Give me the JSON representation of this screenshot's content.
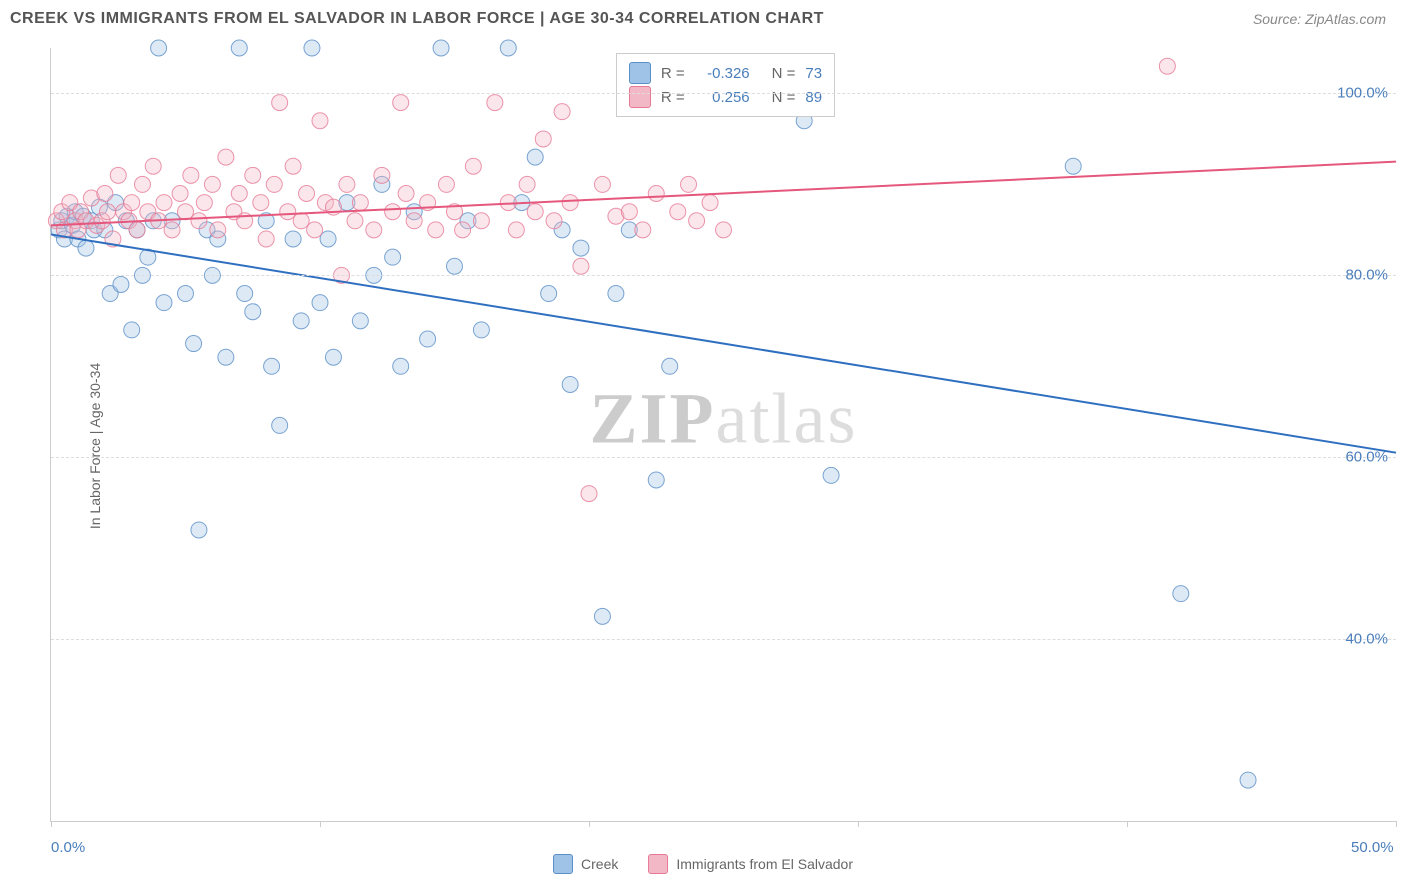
{
  "header": {
    "title": "CREEK VS IMMIGRANTS FROM EL SALVADOR IN LABOR FORCE | AGE 30-34 CORRELATION CHART",
    "source": "Source: ZipAtlas.com"
  },
  "chart": {
    "type": "scatter",
    "y_label": "In Labor Force | Age 30-34",
    "watermark": "ZIPatlas",
    "background_color": "#ffffff",
    "grid_color": "#dddddd",
    "axis_color": "#cccccc",
    "tick_label_color": "#4a7ebb",
    "xlim": [
      0,
      50
    ],
    "ylim": [
      20,
      105
    ],
    "x_ticks": [
      0,
      10,
      20,
      30,
      40,
      50
    ],
    "x_tick_labels": {
      "0": "0.0%",
      "50": "50.0%"
    },
    "y_ticks": [
      40,
      60,
      80,
      100
    ],
    "y_tick_labels": {
      "40": "40.0%",
      "60": "60.0%",
      "80": "80.0%",
      "100": "100.0%"
    },
    "marker_radius": 8,
    "marker_opacity": 0.35,
    "marker_stroke_opacity": 0.8,
    "line_width": 2,
    "series": [
      {
        "name": "Creek",
        "color_fill": "#9ec3e6",
        "color_stroke": "#5b8fc7",
        "line_color": "#2f6fc0",
        "R": "-0.326",
        "N": "73",
        "trend": {
          "x1": 0,
          "y1": 84.5,
          "x2": 50,
          "y2": 60.5
        },
        "points": [
          [
            0.3,
            85
          ],
          [
            0.4,
            86
          ],
          [
            0.5,
            84
          ],
          [
            0.6,
            86.5
          ],
          [
            0.8,
            85.5
          ],
          [
            0.9,
            87
          ],
          [
            1.0,
            84
          ],
          [
            1.2,
            86.5
          ],
          [
            1.3,
            83
          ],
          [
            1.5,
            86
          ],
          [
            1.6,
            85
          ],
          [
            1.8,
            87.5
          ],
          [
            2.0,
            85
          ],
          [
            2.2,
            78
          ],
          [
            2.4,
            88
          ],
          [
            2.6,
            79
          ],
          [
            2.8,
            86
          ],
          [
            3.0,
            74
          ],
          [
            3.2,
            85
          ],
          [
            3.4,
            80
          ],
          [
            3.6,
            82
          ],
          [
            3.8,
            86
          ],
          [
            4.0,
            105
          ],
          [
            4.2,
            77
          ],
          [
            4.5,
            86
          ],
          [
            5.0,
            78
          ],
          [
            5.3,
            72.5
          ],
          [
            5.5,
            52
          ],
          [
            5.8,
            85
          ],
          [
            6.0,
            80
          ],
          [
            6.2,
            84
          ],
          [
            6.5,
            71
          ],
          [
            7.0,
            105
          ],
          [
            7.2,
            78
          ],
          [
            7.5,
            76
          ],
          [
            8.0,
            86
          ],
          [
            8.2,
            70
          ],
          [
            8.5,
            63.5
          ],
          [
            9.0,
            84
          ],
          [
            9.3,
            75
          ],
          [
            9.7,
            105
          ],
          [
            10.0,
            77
          ],
          [
            10.3,
            84
          ],
          [
            10.5,
            71
          ],
          [
            11.0,
            88
          ],
          [
            11.5,
            75
          ],
          [
            12.0,
            80
          ],
          [
            12.3,
            90
          ],
          [
            12.7,
            82
          ],
          [
            13.0,
            70
          ],
          [
            13.5,
            87
          ],
          [
            14.0,
            73
          ],
          [
            14.5,
            105
          ],
          [
            15.0,
            81
          ],
          [
            15.5,
            86
          ],
          [
            16.0,
            74
          ],
          [
            17.0,
            105
          ],
          [
            17.5,
            88
          ],
          [
            18.0,
            93
          ],
          [
            18.5,
            78
          ],
          [
            19.0,
            85
          ],
          [
            19.3,
            68
          ],
          [
            19.7,
            83
          ],
          [
            20.5,
            42.5
          ],
          [
            21.0,
            78
          ],
          [
            21.5,
            85
          ],
          [
            22.5,
            57.5
          ],
          [
            23.0,
            70
          ],
          [
            28.0,
            97
          ],
          [
            29.0,
            58
          ],
          [
            38.0,
            92
          ],
          [
            42.0,
            45
          ],
          [
            44.5,
            24.5
          ]
        ]
      },
      {
        "name": "Immigrants from El Salvador",
        "color_fill": "#f3b8c5",
        "color_stroke": "#e67a96",
        "line_color": "#e5577c",
        "R": "0.256",
        "N": "89",
        "trend": {
          "x1": 0,
          "y1": 85.5,
          "x2": 50,
          "y2": 92.5
        },
        "points": [
          [
            0.2,
            86
          ],
          [
            0.4,
            87
          ],
          [
            0.5,
            85
          ],
          [
            0.7,
            88
          ],
          [
            0.9,
            86
          ],
          [
            1.0,
            85
          ],
          [
            1.1,
            87
          ],
          [
            1.3,
            86
          ],
          [
            1.5,
            88.5
          ],
          [
            1.7,
            85.5
          ],
          [
            1.9,
            86
          ],
          [
            2.0,
            89
          ],
          [
            2.1,
            87
          ],
          [
            2.3,
            84
          ],
          [
            2.5,
            91
          ],
          [
            2.7,
            87
          ],
          [
            2.9,
            86
          ],
          [
            3.0,
            88
          ],
          [
            3.2,
            85
          ],
          [
            3.4,
            90
          ],
          [
            3.6,
            87
          ],
          [
            3.8,
            92
          ],
          [
            4.0,
            86
          ],
          [
            4.2,
            88
          ],
          [
            4.5,
            85
          ],
          [
            4.8,
            89
          ],
          [
            5.0,
            87
          ],
          [
            5.2,
            91
          ],
          [
            5.5,
            86
          ],
          [
            5.7,
            88
          ],
          [
            6.0,
            90
          ],
          [
            6.2,
            85
          ],
          [
            6.5,
            93
          ],
          [
            6.8,
            87
          ],
          [
            7.0,
            89
          ],
          [
            7.2,
            86
          ],
          [
            7.5,
            91
          ],
          [
            7.8,
            88
          ],
          [
            8.0,
            84
          ],
          [
            8.3,
            90
          ],
          [
            8.5,
            99
          ],
          [
            8.8,
            87
          ],
          [
            9.0,
            92
          ],
          [
            9.3,
            86
          ],
          [
            9.5,
            89
          ],
          [
            9.8,
            85
          ],
          [
            10.0,
            97
          ],
          [
            10.2,
            88
          ],
          [
            10.5,
            87.5
          ],
          [
            10.8,
            80
          ],
          [
            11.0,
            90
          ],
          [
            11.3,
            86
          ],
          [
            11.5,
            88
          ],
          [
            12.0,
            85
          ],
          [
            12.3,
            91
          ],
          [
            12.7,
            87
          ],
          [
            13.0,
            99
          ],
          [
            13.2,
            89
          ],
          [
            13.5,
            86
          ],
          [
            14.0,
            88
          ],
          [
            14.3,
            85
          ],
          [
            14.7,
            90
          ],
          [
            15.0,
            87
          ],
          [
            15.3,
            85
          ],
          [
            15.7,
            92
          ],
          [
            16.0,
            86
          ],
          [
            16.5,
            99
          ],
          [
            17.0,
            88
          ],
          [
            17.3,
            85
          ],
          [
            17.7,
            90
          ],
          [
            18.0,
            87
          ],
          [
            18.3,
            95
          ],
          [
            18.7,
            86
          ],
          [
            19.0,
            98
          ],
          [
            19.3,
            88
          ],
          [
            19.7,
            81
          ],
          [
            20.0,
            56
          ],
          [
            20.5,
            90
          ],
          [
            21.0,
            86.5
          ],
          [
            21.5,
            87
          ],
          [
            22.0,
            85
          ],
          [
            22.5,
            89
          ],
          [
            23.0,
            103
          ],
          [
            23.3,
            87
          ],
          [
            23.7,
            90
          ],
          [
            24.0,
            86
          ],
          [
            24.5,
            88
          ],
          [
            25.0,
            85
          ],
          [
            41.5,
            103
          ]
        ]
      }
    ]
  },
  "bottom_legend": {
    "items": [
      {
        "label": "Creek",
        "swatch_fill": "#9ec3e6",
        "swatch_stroke": "#5b8fc7"
      },
      {
        "label": "Immigrants from El Salvador",
        "swatch_fill": "#f3b8c5",
        "swatch_stroke": "#e67a96"
      }
    ]
  }
}
